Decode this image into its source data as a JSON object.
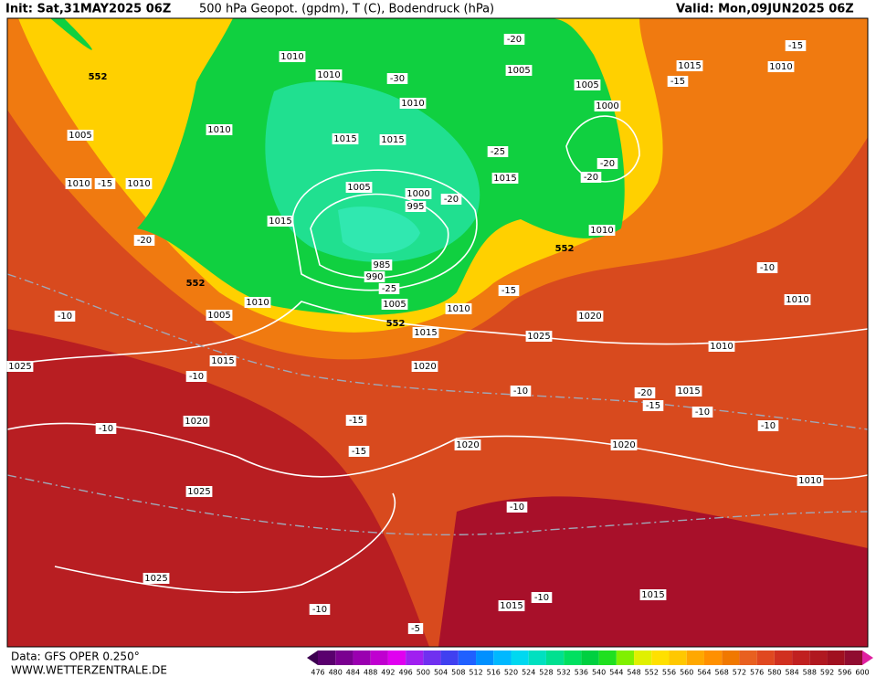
{
  "header": {
    "init": "Init: Sat,31MAY2025 06Z",
    "title": "500 hPa Geopot. (gpdm), T (C), Bodendruck (hPa)",
    "valid": "Valid: Mon,09JUN2025 06Z"
  },
  "footer": {
    "data": "Data: GFS OPER 0.250°",
    "site": "WWW.WETTERZENTRALE.DE"
  },
  "colorbar": {
    "ticks": [
      476,
      480,
      484,
      488,
      492,
      496,
      500,
      504,
      508,
      512,
      516,
      520,
      524,
      528,
      532,
      536,
      540,
      544,
      548,
      552,
      556,
      560,
      564,
      568,
      572,
      576,
      580,
      584,
      588,
      592,
      596,
      600
    ],
    "colors": [
      "#3c0050",
      "#5a006e",
      "#7a0090",
      "#9a00b0",
      "#c000d0",
      "#e000f0",
      "#a020f0",
      "#7030f0",
      "#4040f0",
      "#2060ff",
      "#0090ff",
      "#00b8ff",
      "#00d8f0",
      "#00e0c0",
      "#00e090",
      "#00e060",
      "#00d040",
      "#20e020",
      "#80f000",
      "#e0f000",
      "#ffe000",
      "#ffc800",
      "#ffa800",
      "#ff9000",
      "#f07800",
      "#e86020",
      "#e04820",
      "#d03020",
      "#c02020",
      "#b01820",
      "#a01020",
      "#900c30",
      "#e020a0"
    ]
  },
  "map": {
    "pressure_labels": [
      1010,
      1010,
      1010,
      1005,
      1005,
      1015,
      1010,
      1000,
      1010,
      1015,
      1015,
      1005,
      1010,
      1010,
      1015,
      1005,
      1000,
      995,
      1015,
      1010,
      985,
      990,
      1005,
      1010,
      1005,
      1010,
      1020,
      1010,
      1015,
      1025,
      1010,
      1025,
      1015,
      1020,
      1015,
      1020,
      1020,
      1020,
      1010,
      1025,
      1025,
      1015,
      1015
    ],
    "temperature_labels": [
      -20,
      -15,
      -15,
      -30,
      -25,
      -20,
      -20,
      -15,
      -20,
      -20,
      -25,
      -15,
      -10,
      -10,
      -10,
      -10,
      -20,
      -15,
      -10,
      -10,
      -15,
      -15,
      -10,
      -10,
      -10,
      -10,
      -5
    ],
    "geopotential_labels": [
      552,
      552,
      552,
      552
    ]
  }
}
